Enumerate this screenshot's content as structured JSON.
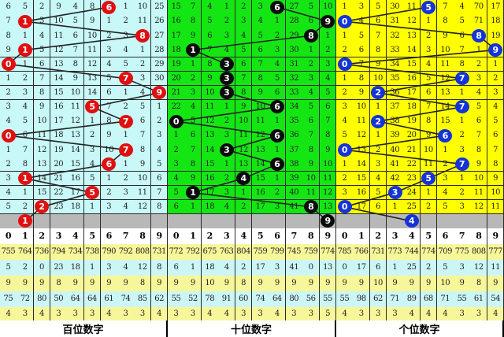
{
  "chart_data": {
    "type": "table",
    "panels": [
      {
        "label": "百位数字",
        "bg": "#c8f8f8",
        "ball_color": "#e01010",
        "balls": [
          6,
          1,
          8,
          1,
          0,
          7,
          9,
          5,
          7,
          0,
          7,
          6,
          1,
          5,
          2,
          1
        ],
        "rows": [
          [
            "6",
            "5",
            "2",
            "9",
            "4",
            "8",
            "6",
            "1",
            "10",
            "25"
          ],
          [
            "7",
            "1",
            "3",
            "10",
            "5",
            "9",
            "1",
            "2",
            "11",
            "26"
          ],
          [
            "8",
            "1",
            "4",
            "11",
            "6",
            "10",
            "2",
            "3",
            "8",
            "27"
          ],
          [
            "9",
            "1",
            "5",
            "12",
            "7",
            "11",
            "3",
            "4",
            "1",
            "28"
          ],
          [
            "0",
            "1",
            "6",
            "13",
            "8",
            "12",
            "4",
            "5",
            "2",
            "29"
          ],
          [
            "1",
            "2",
            "7",
            "14",
            "9",
            "13",
            "5",
            "7",
            "3",
            "30"
          ],
          [
            "2",
            "3",
            "8",
            "15",
            "10",
            "14",
            "6",
            "1",
            "4",
            "9"
          ],
          [
            "3",
            "4",
            "9",
            "16",
            "11",
            "5",
            "7",
            "2",
            "5",
            "1"
          ],
          [
            "4",
            "5",
            "10",
            "17",
            "12",
            "1",
            "8",
            "7",
            "6",
            "2"
          ],
          [
            "0",
            "6",
            "11",
            "18",
            "13",
            "2",
            "9",
            "1",
            "7",
            "3"
          ],
          [
            "1",
            "7",
            "12",
            "19",
            "14",
            "3",
            "10",
            "7",
            "8",
            "4"
          ],
          [
            "2",
            "8",
            "13",
            "20",
            "15",
            "4",
            "6",
            "1",
            "9",
            "5"
          ],
          [
            "3",
            "1",
            "14",
            "21",
            "16",
            "5",
            "1",
            "2",
            "10",
            "6"
          ],
          [
            "4",
            "1",
            "15",
            "22",
            "17",
            "5",
            "2",
            "3",
            "11",
            "7"
          ],
          [
            "5",
            "2",
            "2",
            "23",
            "18",
            "1",
            "3",
            "4",
            "12",
            "8"
          ]
        ],
        "stats": [
          [
            "755",
            "764",
            "736",
            "794",
            "734",
            "738",
            "790",
            "792",
            "808",
            "731"
          ],
          [
            "5",
            "2",
            "0",
            "23",
            "18",
            "1",
            "3",
            "4",
            "12",
            "8"
          ],
          [
            "9",
            "9",
            "9",
            "8",
            "9",
            "9",
            "9",
            "9",
            "8",
            "9"
          ],
          [
            "75",
            "72",
            "80",
            "50",
            "64",
            "64",
            "61",
            "74",
            "85",
            "62"
          ],
          [
            "4",
            "3",
            "4",
            "3",
            "3",
            "3",
            "4",
            "3",
            "3",
            "4"
          ]
        ]
      },
      {
        "label": "十位数字",
        "bg": "#14e614",
        "ball_color": "#0a0a0a",
        "balls": [
          6,
          9,
          8,
          1,
          3,
          3,
          3,
          6,
          0,
          6,
          3,
          6,
          4,
          1,
          8,
          9
        ],
        "rows": [
          [
            "15",
            "7",
            "4",
            "1",
            "2",
            "3",
            "6",
            "27",
            "5",
            "10"
          ],
          [
            "16",
            "8",
            "5",
            "2",
            "3",
            "4",
            "1",
            "28",
            "6",
            "9"
          ],
          [
            "17",
            "9",
            "6",
            "3",
            "4",
            "5",
            "2",
            "29",
            "8",
            "1"
          ],
          [
            "18",
            "1",
            "7",
            "4",
            "5",
            "6",
            "3",
            "30",
            "1",
            "2"
          ],
          [
            "19",
            "1",
            "8",
            "3",
            "6",
            "7",
            "4",
            "31",
            "2",
            "3"
          ],
          [
            "20",
            "2",
            "9",
            "3",
            "7",
            "8",
            "5",
            "32",
            "3",
            "4"
          ],
          [
            "21",
            "3",
            "10",
            "3",
            "8",
            "9",
            "6",
            "33",
            "4",
            "5"
          ],
          [
            "22",
            "4",
            "11",
            "1",
            "9",
            "10",
            "6",
            "34",
            "5",
            "6"
          ],
          [
            "0",
            "5",
            "12",
            "2",
            "10",
            "11",
            "1",
            "35",
            "6",
            "7"
          ],
          [
            "1",
            "6",
            "13",
            "3",
            "11",
            "12",
            "6",
            "36",
            "7",
            "8"
          ],
          [
            "2",
            "7",
            "14",
            "3",
            "12",
            "13",
            "1",
            "37",
            "8",
            "9"
          ],
          [
            "3",
            "8",
            "15",
            "1",
            "13",
            "14",
            "6",
            "38",
            "9",
            "10"
          ],
          [
            "4",
            "9",
            "16",
            "2",
            "4",
            "15",
            "1",
            "39",
            "10",
            "11"
          ],
          [
            "5",
            "1",
            "17",
            "3",
            "1",
            "16",
            "2",
            "40",
            "11",
            "12"
          ],
          [
            "6",
            "1",
            "18",
            "4",
            "2",
            "17",
            "3",
            "41",
            "8",
            "13"
          ]
        ],
        "stats": [
          [
            "772",
            "792",
            "675",
            "763",
            "804",
            "759",
            "799",
            "745",
            "759",
            "774"
          ],
          [
            "6",
            "1",
            "18",
            "4",
            "2",
            "17",
            "3",
            "41",
            "0",
            "13"
          ],
          [
            "9",
            "9",
            "10",
            "9",
            "8",
            "9",
            "9",
            "9",
            "9",
            "9"
          ],
          [
            "55",
            "52",
            "78",
            "91",
            "60",
            "74",
            "64",
            "80",
            "56",
            "55"
          ],
          [
            "3",
            "3",
            "4",
            "4",
            "3",
            "3",
            "4",
            "3",
            "3",
            "5"
          ]
        ]
      },
      {
        "label": "个位数字",
        "bg": "#ffff00",
        "ball_color": "#1434d8",
        "balls": [
          5,
          0,
          8,
          9,
          0,
          7,
          2,
          7,
          2,
          6,
          0,
          7,
          5,
          3,
          0,
          4
        ],
        "rows": [
          [
            "1",
            "3",
            "5",
            "30",
            "11",
            "5",
            "7",
            "4",
            "70",
            "17"
          ],
          [
            "0",
            "4",
            "6",
            "31",
            "12",
            "1",
            "8",
            "5",
            "71",
            "18"
          ],
          [
            "1",
            "5",
            "7",
            "32",
            "13",
            "2",
            "9",
            "6",
            "8",
            "19"
          ],
          [
            "2",
            "6",
            "8",
            "33",
            "14",
            "3",
            "10",
            "7",
            "1",
            "9"
          ],
          [
            "0",
            "7",
            "9",
            "34",
            "15",
            "4",
            "11",
            "8",
            "2",
            "1"
          ],
          [
            "1",
            "8",
            "10",
            "35",
            "16",
            "5",
            "12",
            "7",
            "3",
            "2"
          ],
          [
            "2",
            "9",
            "2",
            "36",
            "17",
            "6",
            "13",
            "1",
            "4",
            "3"
          ],
          [
            "3",
            "10",
            "1",
            "37",
            "18",
            "7",
            "14",
            "7",
            "5",
            "4"
          ],
          [
            "4",
            "11",
            "2",
            "38",
            "19",
            "8",
            "15",
            "1",
            "6",
            "5"
          ],
          [
            "5",
            "12",
            "1",
            "39",
            "20",
            "9",
            "6",
            "2",
            "7",
            "6"
          ],
          [
            "0",
            "13",
            "2",
            "40",
            "21",
            "10",
            "1",
            "3",
            "8",
            "7"
          ],
          [
            "1",
            "14",
            "3",
            "41",
            "22",
            "11",
            "2",
            "7",
            "9",
            "8"
          ],
          [
            "2",
            "15",
            "4",
            "42",
            "23",
            "5",
            "3",
            "1",
            "10",
            "9"
          ],
          [
            "3",
            "16",
            "5",
            "3",
            "24",
            "1",
            "4",
            "2",
            "11",
            "10"
          ],
          [
            "0",
            "17",
            "6",
            "1",
            "25",
            "2",
            "5",
            "3",
            "12",
            "11"
          ]
        ],
        "stats": [
          [
            "785",
            "766",
            "731",
            "773",
            "744",
            "774",
            "709",
            "775",
            "808",
            "777"
          ],
          [
            "0",
            "17",
            "6",
            "1",
            "25",
            "2",
            "5",
            "3",
            "12",
            "11"
          ],
          [
            "9",
            "9",
            "10",
            "9",
            "9",
            "9",
            "10",
            "9",
            "8",
            "9"
          ],
          [
            "55",
            "98",
            "62",
            "71",
            "89",
            "68",
            "71",
            "55",
            "61",
            "54"
          ],
          [
            "4",
            "3",
            "3",
            "3",
            "4",
            "4",
            "4",
            "3",
            "3",
            "4"
          ]
        ]
      }
    ],
    "digits": [
      "0",
      "1",
      "2",
      "3",
      "4",
      "5",
      "6",
      "7",
      "8",
      "9"
    ],
    "stat_colors": [
      "#f7f79a",
      "#ccf6f6"
    ]
  }
}
